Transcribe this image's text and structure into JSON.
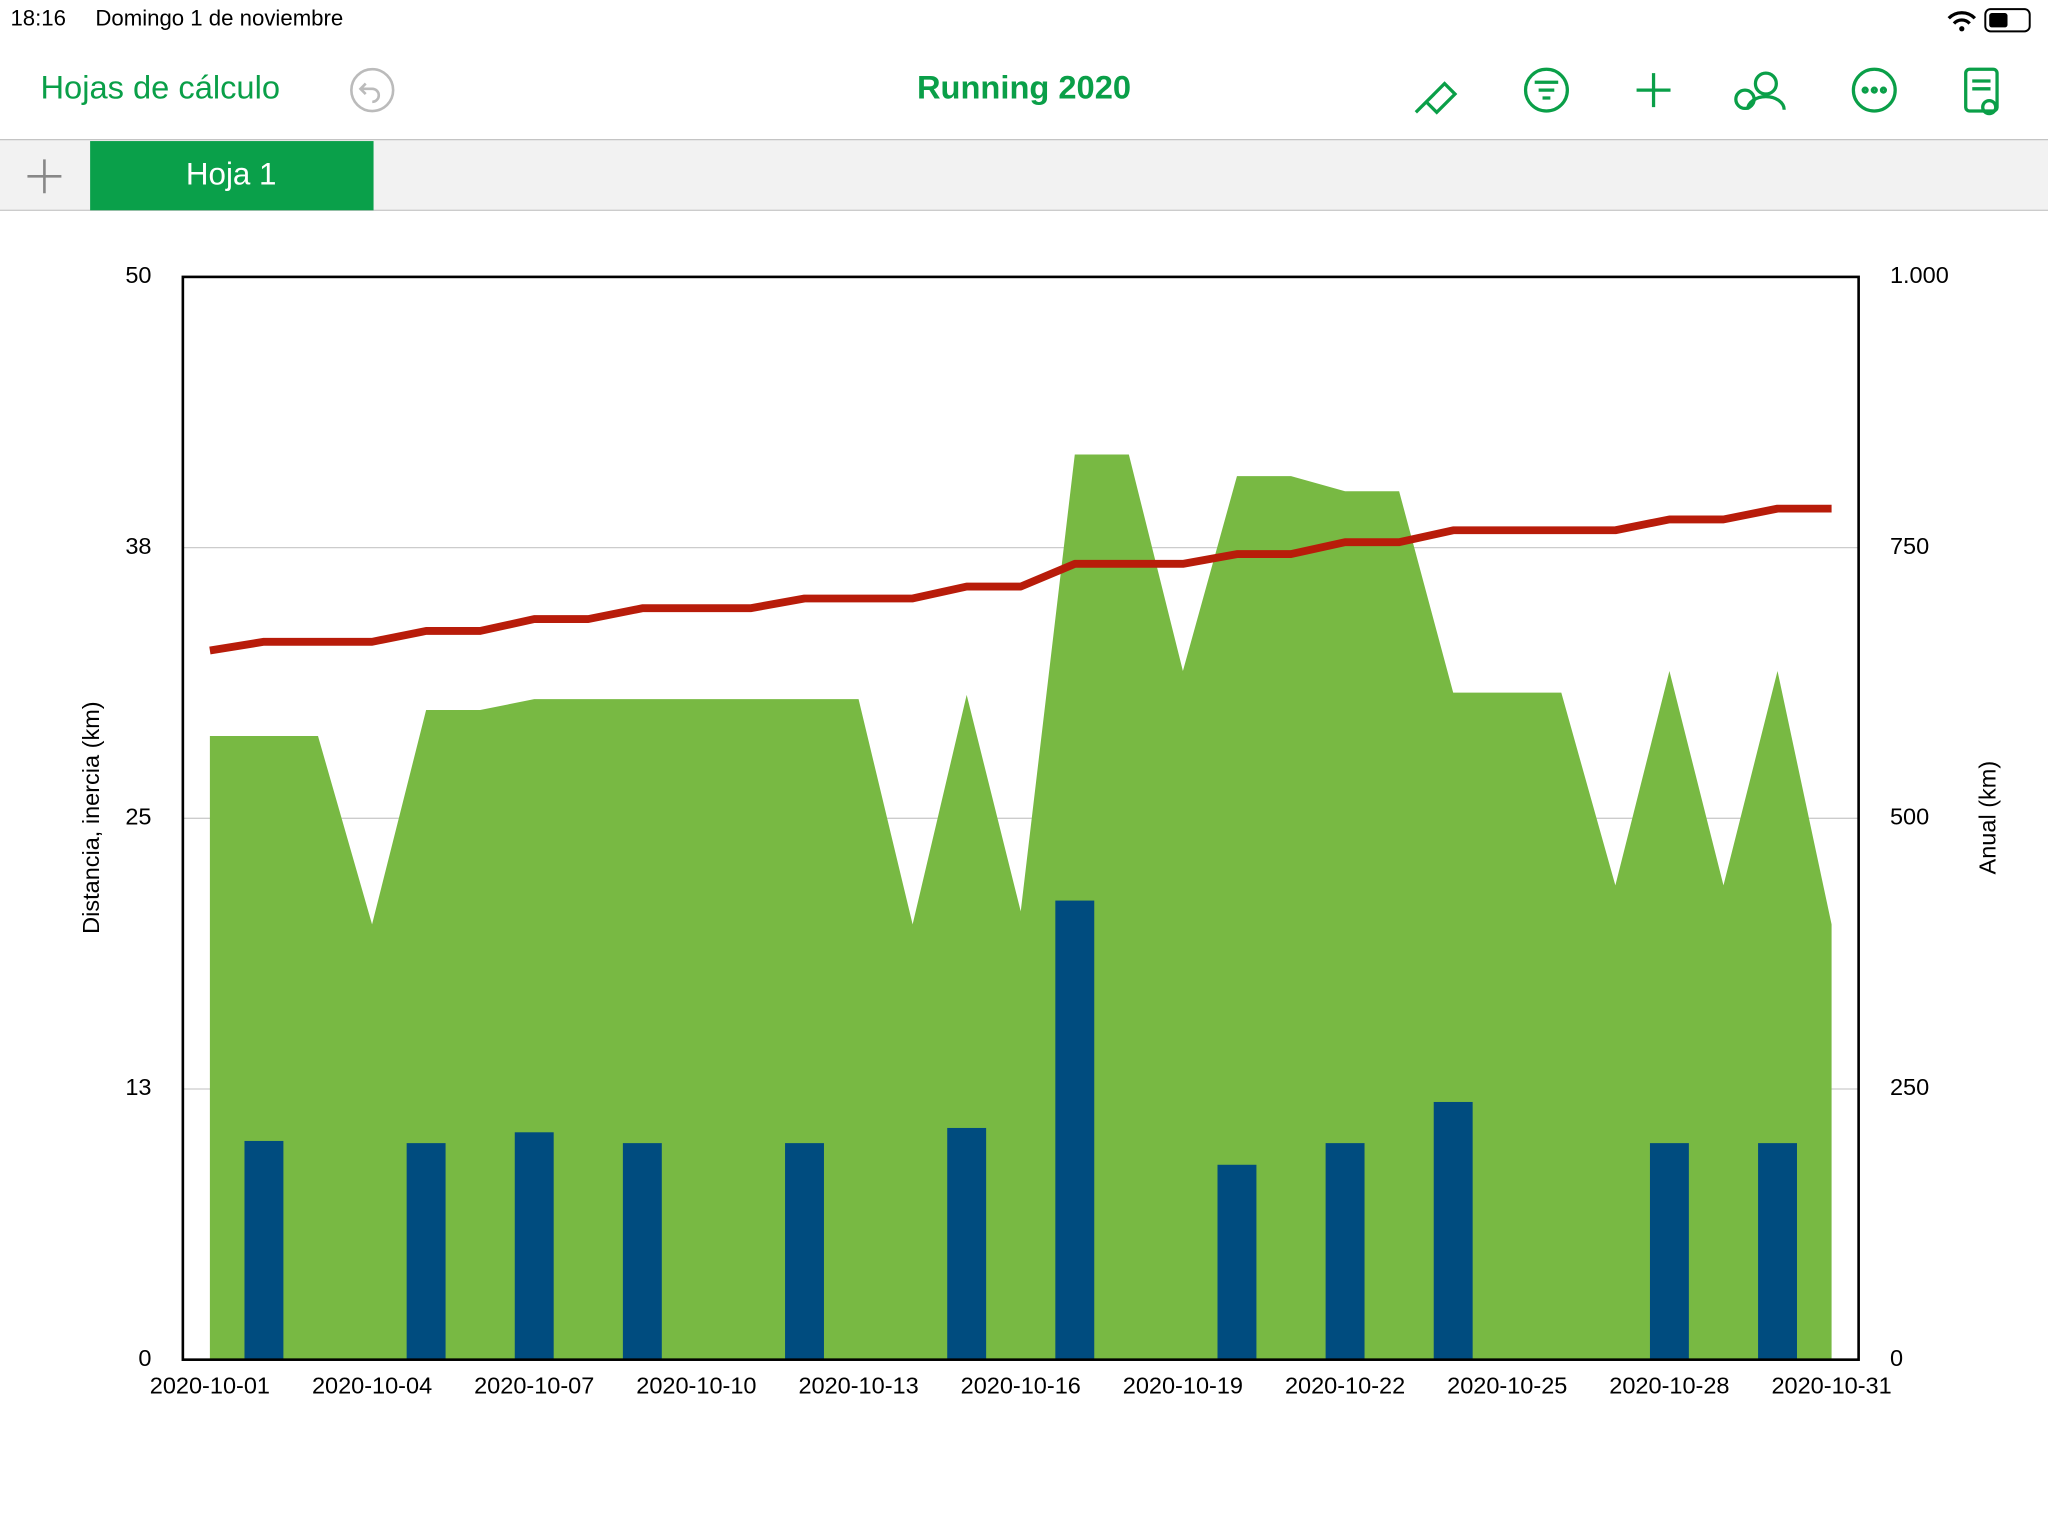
{
  "status_bar": {
    "time": "18:16",
    "date": "Domingo 1 de noviembre"
  },
  "toolbar": {
    "back": "Hojas de cálculo",
    "title": "Running 2020"
  },
  "tabs": {
    "active": "Hoja 1"
  },
  "chart_data": {
    "type": "combo",
    "y_label": "Distancia, inercia (km)",
    "y2_label": "Anual (km)",
    "categories": [
      "2020-10-01",
      null,
      null,
      "2020-10-04",
      null,
      null,
      "2020-10-07",
      null,
      null,
      "2020-10-10",
      null,
      null,
      "2020-10-13",
      null,
      null,
      "2020-10-16",
      null,
      null,
      "2020-10-19",
      null,
      null,
      "2020-10-22",
      null,
      null,
      "2020-10-25",
      null,
      null,
      "2020-10-28",
      null,
      null,
      "2020-10-31"
    ],
    "ylim": [
      0,
      50
    ],
    "yticks": [
      0,
      {
        "value": 12.5,
        "label": "13"
      },
      25,
      {
        "value": 37.5,
        "label": "38"
      },
      50
    ],
    "y2lim": [
      0,
      1000
    ],
    "y2ticks": [
      0,
      250,
      500,
      750,
      {
        "value": 1000,
        "label": "1.000"
      }
    ],
    "grid": true,
    "series": [
      {
        "type": "area",
        "color": "#78b943",
        "values": [
          28.8,
          28.8,
          28.8,
          20.1,
          30.0,
          30.0,
          30.5,
          30.5,
          30.5,
          30.5,
          30.5,
          30.5,
          30.5,
          20.1,
          30.7,
          20.7,
          41.8,
          41.8,
          31.8,
          40.8,
          40.8,
          40.1,
          40.1,
          30.8,
          30.8,
          30.8,
          21.9,
          31.8,
          21.9,
          31.8,
          20.1
        ]
      },
      {
        "type": "bar",
        "color": "#004c7f",
        "values": [
          null,
          10.1,
          null,
          null,
          10.0,
          null,
          10.5,
          null,
          10.0,
          null,
          null,
          10.0,
          null,
          null,
          10.7,
          null,
          21.2,
          null,
          null,
          9.0,
          null,
          10.0,
          null,
          11.9,
          null,
          null,
          null,
          10.0,
          null,
          10.0,
          null
        ]
      },
      {
        "type": "line",
        "axis": "y2",
        "color": "#b81c0a",
        "values": [
          655,
          663,
          663,
          663,
          673,
          673,
          684,
          684,
          694,
          694,
          694,
          703,
          703,
          703,
          714,
          714,
          735,
          735,
          735,
          744,
          744,
          755,
          755,
          766,
          766,
          766,
          766,
          776,
          776,
          786,
          786
        ]
      }
    ]
  }
}
